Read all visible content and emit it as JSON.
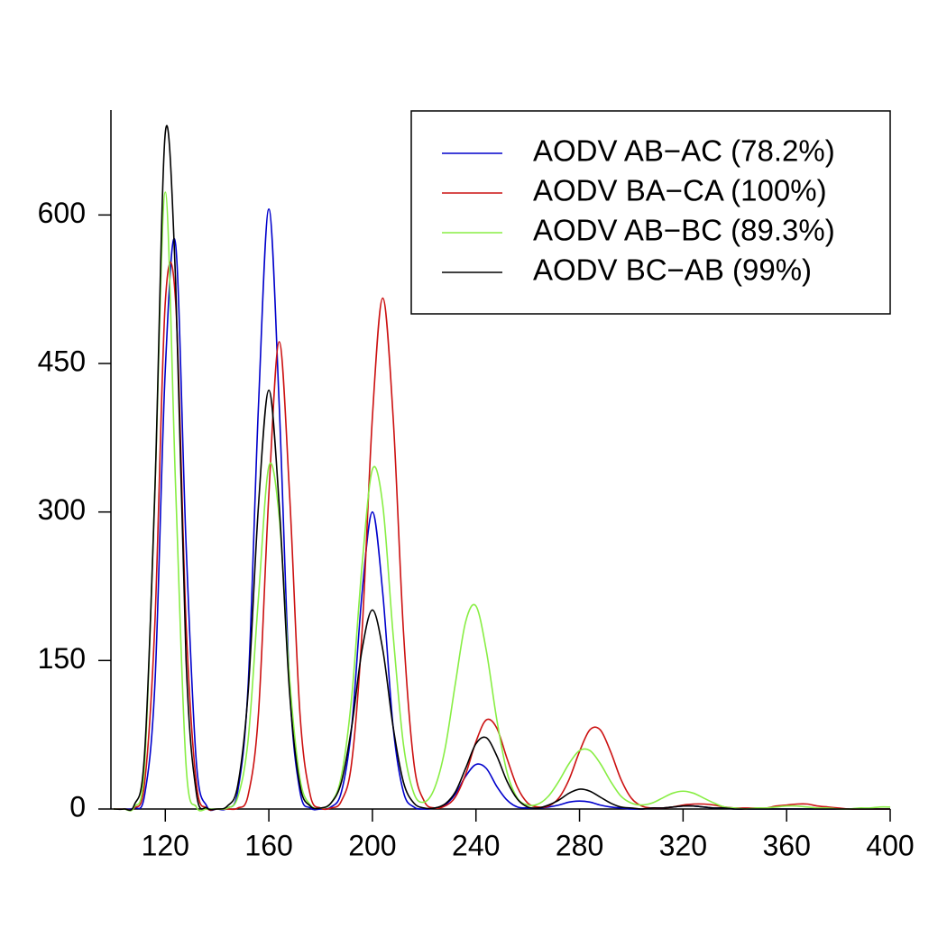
{
  "chart_data": {
    "type": "line",
    "x": [
      100,
      104,
      108,
      112,
      116,
      120,
      124,
      128,
      132,
      136,
      140,
      144,
      148,
      152,
      156,
      160,
      164,
      168,
      172,
      176,
      180,
      184,
      188,
      192,
      196,
      200,
      204,
      208,
      212,
      216,
      220,
      224,
      228,
      232,
      236,
      240,
      244,
      248,
      252,
      256,
      260,
      264,
      268,
      272,
      276,
      280,
      284,
      288,
      292,
      296,
      300,
      304,
      308,
      312,
      316,
      320,
      324,
      328,
      332,
      336,
      340,
      344,
      348,
      352,
      356,
      360,
      364,
      368,
      372,
      376,
      380,
      384,
      388,
      392,
      396,
      400
    ],
    "series": [
      {
        "name": "AODV AB−AC (78.2%)",
        "color": "#0000cc",
        "values": [
          0,
          0,
          1,
          14,
          127,
          444,
          570,
          269,
          47,
          3,
          0,
          1,
          18,
          125,
          408,
          606,
          408,
          125,
          18,
          1,
          0,
          2,
          17,
          83,
          218,
          300,
          218,
          83,
          17,
          2,
          0,
          1,
          4,
          15,
          33,
          45,
          41,
          23,
          9,
          2,
          1,
          1,
          2,
          4,
          7,
          8,
          7,
          4,
          2,
          1,
          0,
          0,
          1,
          1,
          2,
          3,
          3,
          2,
          1,
          1,
          0,
          0,
          0,
          0,
          0,
          0,
          0,
          0,
          0,
          0,
          0,
          0,
          0,
          0,
          0,
          0
        ]
      },
      {
        "name": "AODV BA−CA (100%)",
        "color": "#cc1111",
        "values": [
          0,
          0,
          1,
          26,
          189,
          512,
          512,
          189,
          26,
          1,
          0,
          0,
          1,
          14,
          97,
          318,
          472,
          318,
          97,
          14,
          1,
          1,
          8,
          47,
          179,
          396,
          516,
          396,
          179,
          47,
          8,
          1,
          3,
          12,
          35,
          68,
          90,
          82,
          51,
          22,
          6,
          2,
          3,
          11,
          30,
          58,
          80,
          80,
          58,
          30,
          11,
          3,
          1,
          1,
          2,
          4,
          5,
          5,
          4,
          2,
          1,
          1,
          1,
          1,
          3,
          4,
          5,
          5,
          3,
          2,
          1,
          0,
          0,
          0,
          0,
          0
        ]
      },
      {
        "name": "AODV AB−BC (89.3%)",
        "color": "#88ee44",
        "values": [
          0,
          0,
          2,
          45,
          324,
          623,
          324,
          45,
          2,
          0,
          0,
          1,
          12,
          70,
          214,
          346,
          295,
          132,
          31,
          4,
          1,
          6,
          33,
          113,
          246,
          343,
          307,
          176,
          65,
          16,
          7,
          21,
          60,
          126,
          189,
          205,
          160,
          91,
          37,
          11,
          4,
          5,
          13,
          28,
          46,
          59,
          59,
          46,
          28,
          13,
          6,
          4,
          6,
          11,
          16,
          18,
          16,
          11,
          6,
          2,
          1,
          0,
          1,
          1,
          2,
          3,
          3,
          2,
          1,
          1,
          0,
          0,
          1,
          1,
          2,
          2
        ]
      },
      {
        "name": "AODV BC−AB (99%)",
        "color": "#000000",
        "values": [
          0,
          0,
          4,
          56,
          323,
          683,
          532,
          152,
          16,
          1,
          0,
          3,
          24,
          118,
          307,
          423,
          307,
          118,
          24,
          3,
          1,
          6,
          27,
          83,
          161,
          201,
          161,
          83,
          27,
          6,
          1,
          1,
          5,
          17,
          41,
          66,
          72,
          54,
          28,
          10,
          2,
          1,
          4,
          9,
          16,
          20,
          18,
          12,
          6,
          2,
          1,
          0,
          1,
          1,
          2,
          3,
          3,
          2,
          1,
          1,
          0,
          0,
          0,
          0,
          0,
          0,
          0,
          0,
          0,
          0,
          0,
          0,
          0,
          0,
          0,
          0
        ]
      }
    ],
    "xlim": [
      99,
      400
    ],
    "xticks": [
      120,
      160,
      200,
      240,
      280,
      320,
      360,
      400
    ],
    "ylim": [
      0,
      706
    ],
    "yticks": [
      0,
      150,
      300,
      450,
      600
    ],
    "legend": "top-right"
  }
}
